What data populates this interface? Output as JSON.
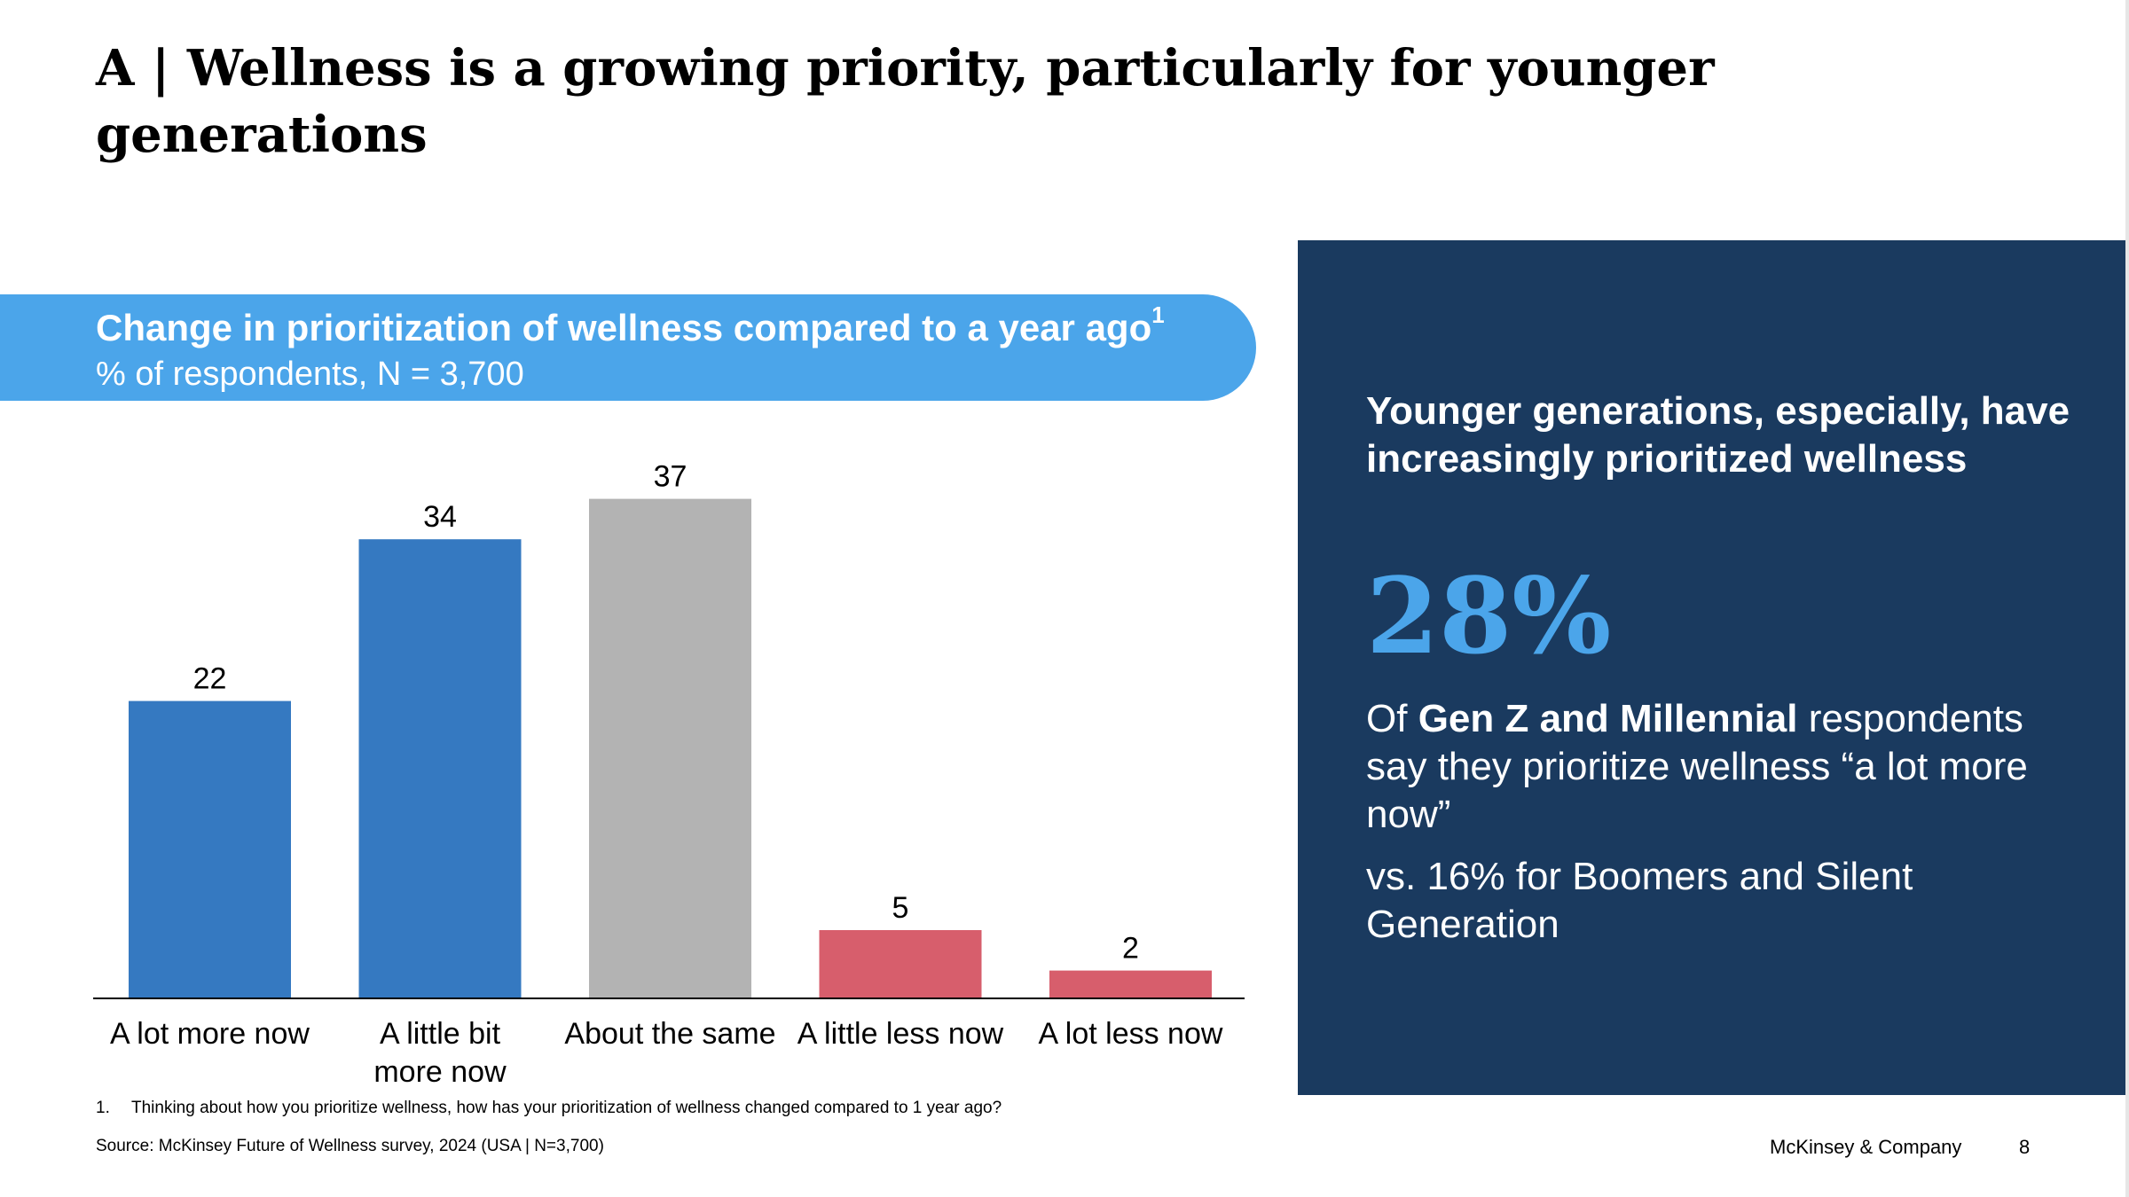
{
  "title": "A | Wellness is a growing priority, particularly for younger generations",
  "banner": {
    "title": "Change in prioritization of wellness compared to a year ago",
    "footnote_marker": "1",
    "subtitle": "% of respondents, N = 3,700"
  },
  "chart_data": {
    "type": "bar",
    "title": "Change in prioritization of wellness compared to a year ago",
    "ylabel": "% of respondents, N = 3,700",
    "categories": [
      "A lot more now",
      "A little bit more now",
      "About the same",
      "A little less now",
      "A lot less now"
    ],
    "category_labels": [
      [
        "A lot more now"
      ],
      [
        "A little bit",
        "more now"
      ],
      [
        "About the same"
      ],
      [
        "A little less now"
      ],
      [
        "A lot less now"
      ]
    ],
    "values": [
      22,
      34,
      37,
      5,
      2
    ],
    "colors": [
      "#3579c1",
      "#3579c1",
      "#b3b3b3",
      "#d75e6c",
      "#d75e6c"
    ],
    "ylim": [
      0,
      40
    ],
    "grid": false,
    "data_labels": true
  },
  "footnote": {
    "number": "1.",
    "text": "Thinking about how you prioritize wellness, how has your prioritization of wellness changed compared to 1 year ago?"
  },
  "source": "Source: McKinsey Future of Wellness survey, 2024 (USA | N=3,700)",
  "panel": {
    "heading": "Younger generations, especially, have increasingly prioritized wellness",
    "stat": "28%",
    "desc_prefix": "Of ",
    "desc_bold": "Gen Z and Millennial",
    "desc_suffix": " respondents say they prioritize wellness “a lot more now”",
    "compare": "vs. 16% for Boomers and Silent Generation"
  },
  "brand": "McKinsey & Company",
  "page_number": "8",
  "colors": {
    "accent_blue": "#4ba5ea",
    "bar_blue": "#3579c1",
    "bar_gray": "#b3b3b3",
    "bar_red": "#d75e6c",
    "panel_navy": "#1a3a5f"
  }
}
